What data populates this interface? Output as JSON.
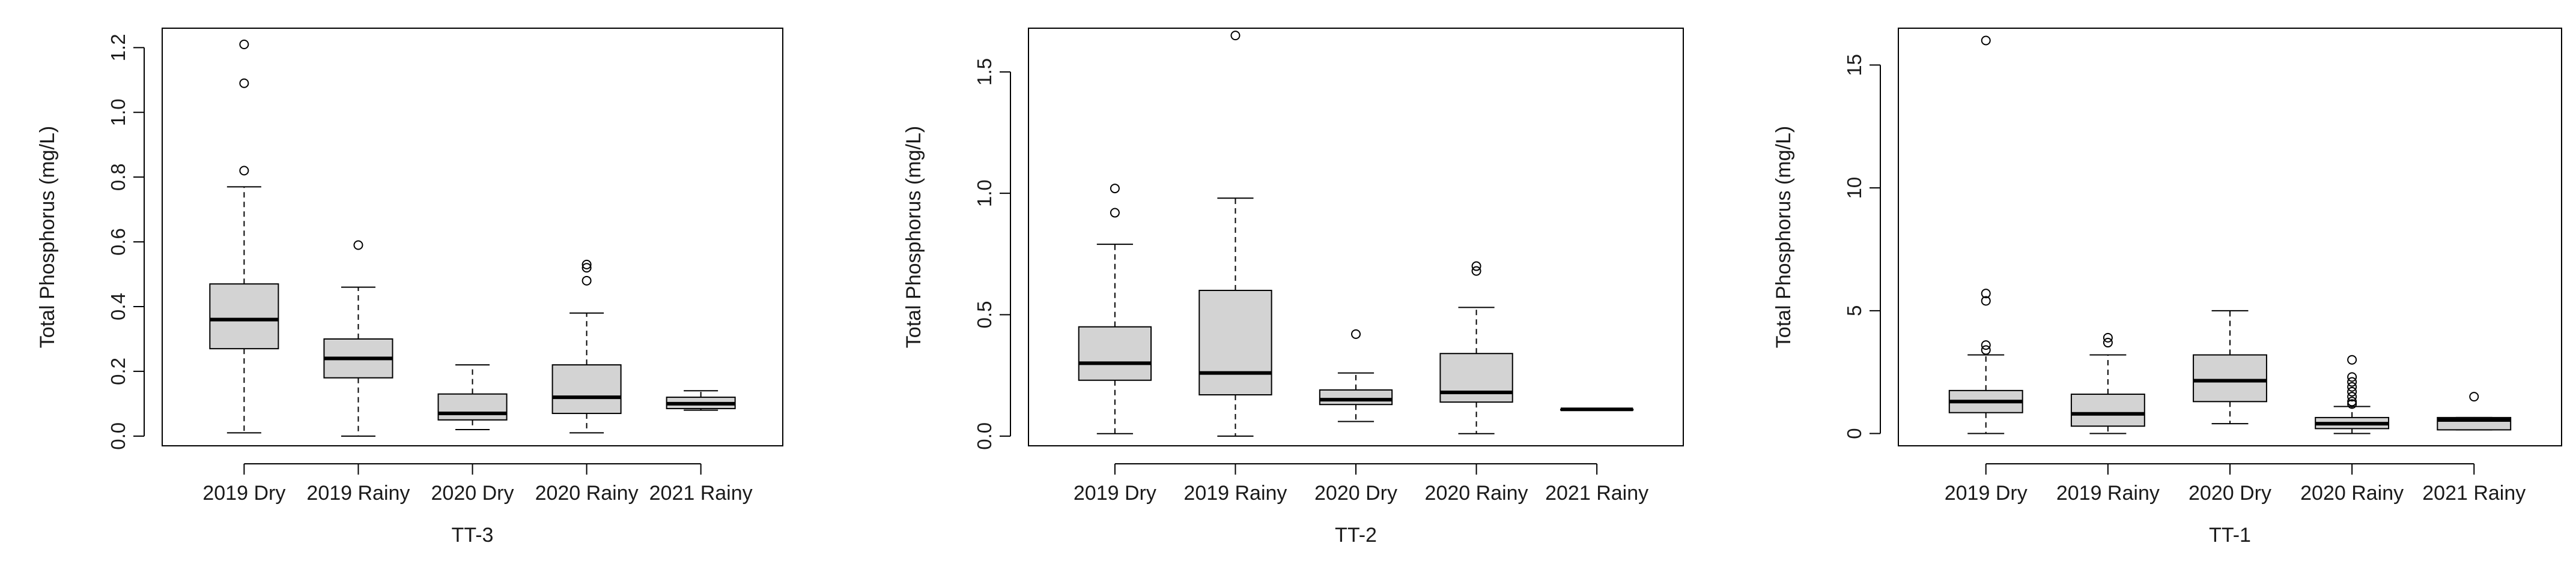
{
  "chart_data": [
    {
      "type": "boxplot",
      "title": "TT-3",
      "xlabel": "TT-3",
      "ylabel": "Total Phosphorus (mg/L)",
      "ylim": [
        -0.03,
        1.26
      ],
      "yticks": [
        0.0,
        0.2,
        0.4,
        0.6,
        0.8,
        1.0,
        1.2
      ],
      "ytick_labels": [
        "0.0",
        "0.2",
        "0.4",
        "0.6",
        "0.8",
        "1.0",
        "1.2"
      ],
      "categories": [
        "2019 Dry",
        "2019 Rainy",
        "2020 Dry",
        "2020 Rainy",
        "2021 Rainy"
      ],
      "boxes": [
        {
          "lower_whisker": 0.01,
          "q1": 0.27,
          "median": 0.36,
          "q3": 0.47,
          "upper_whisker": 0.77,
          "outliers": [
            0.82,
            1.09,
            1.21
          ]
        },
        {
          "lower_whisker": 0.0,
          "q1": 0.18,
          "median": 0.24,
          "q3": 0.3,
          "upper_whisker": 0.46,
          "outliers": [
            0.59
          ]
        },
        {
          "lower_whisker": 0.02,
          "q1": 0.05,
          "median": 0.07,
          "q3": 0.13,
          "upper_whisker": 0.22,
          "outliers": []
        },
        {
          "lower_whisker": 0.01,
          "q1": 0.07,
          "median": 0.12,
          "q3": 0.22,
          "upper_whisker": 0.38,
          "outliers": [
            0.48,
            0.52,
            0.53
          ]
        },
        {
          "lower_whisker": 0.08,
          "q1": 0.085,
          "median": 0.1,
          "q3": 0.12,
          "upper_whisker": 0.14,
          "outliers": []
        }
      ]
    },
    {
      "type": "boxplot",
      "title": "TT-2",
      "xlabel": "TT-2",
      "ylabel": "Total Phosphorus (mg/L)",
      "ylim": [
        -0.04,
        1.68
      ],
      "yticks": [
        0.0,
        0.5,
        1.0,
        1.5
      ],
      "ytick_labels": [
        "0.0",
        "0.5",
        "1.0",
        "1.5"
      ],
      "categories": [
        "2019 Dry",
        "2019 Rainy",
        "2020 Dry",
        "2020 Rainy",
        "2021 Rainy"
      ],
      "boxes": [
        {
          "lower_whisker": 0.01,
          "q1": 0.23,
          "median": 0.3,
          "q3": 0.45,
          "upper_whisker": 0.79,
          "outliers": [
            0.92,
            1.02
          ]
        },
        {
          "lower_whisker": 0.0,
          "q1": 0.17,
          "median": 0.26,
          "q3": 0.6,
          "upper_whisker": 0.98,
          "outliers": [
            1.65
          ]
        },
        {
          "lower_whisker": 0.06,
          "q1": 0.13,
          "median": 0.15,
          "q3": 0.19,
          "upper_whisker": 0.26,
          "outliers": [
            0.42
          ]
        },
        {
          "lower_whisker": 0.01,
          "q1": 0.14,
          "median": 0.18,
          "q3": 0.34,
          "upper_whisker": 0.53,
          "outliers": [
            0.68,
            0.7
          ]
        },
        {
          "lower_whisker": 0.11,
          "q1": 0.11,
          "median": 0.11,
          "q3": 0.11,
          "upper_whisker": 0.11,
          "outliers": []
        }
      ]
    },
    {
      "type": "boxplot",
      "title": "TT-1",
      "xlabel": "TT-1",
      "ylabel": "Total Phosphorus (mg/L)",
      "ylim": [
        -0.5,
        16.5
      ],
      "yticks": [
        0,
        5,
        10,
        15
      ],
      "ytick_labels": [
        "0",
        "5",
        "10",
        "15"
      ],
      "categories": [
        "2019 Dry",
        "2019 Rainy",
        "2020 Dry",
        "2020 Rainy",
        "2021 Rainy"
      ],
      "boxes": [
        {
          "lower_whisker": 0.0,
          "q1": 0.85,
          "median": 1.3,
          "q3": 1.75,
          "upper_whisker": 3.2,
          "outliers": [
            3.4,
            3.6,
            5.4,
            5.7,
            16.0
          ]
        },
        {
          "lower_whisker": 0.0,
          "q1": 0.3,
          "median": 0.8,
          "q3": 1.6,
          "upper_whisker": 3.2,
          "outliers": [
            3.7,
            3.9
          ]
        },
        {
          "lower_whisker": 0.4,
          "q1": 1.3,
          "median": 2.15,
          "q3": 3.2,
          "upper_whisker": 5.0,
          "outliers": []
        },
        {
          "lower_whisker": 0.0,
          "q1": 0.2,
          "median": 0.4,
          "q3": 0.65,
          "upper_whisker": 1.1,
          "outliers": [
            1.2,
            1.3,
            1.5,
            1.7,
            1.9,
            2.1,
            2.3,
            3.0
          ]
        },
        {
          "lower_whisker": 0.15,
          "q1": 0.15,
          "median": 0.55,
          "q3": 0.65,
          "upper_whisker": 0.65,
          "outliers": [
            1.5
          ]
        }
      ]
    }
  ]
}
